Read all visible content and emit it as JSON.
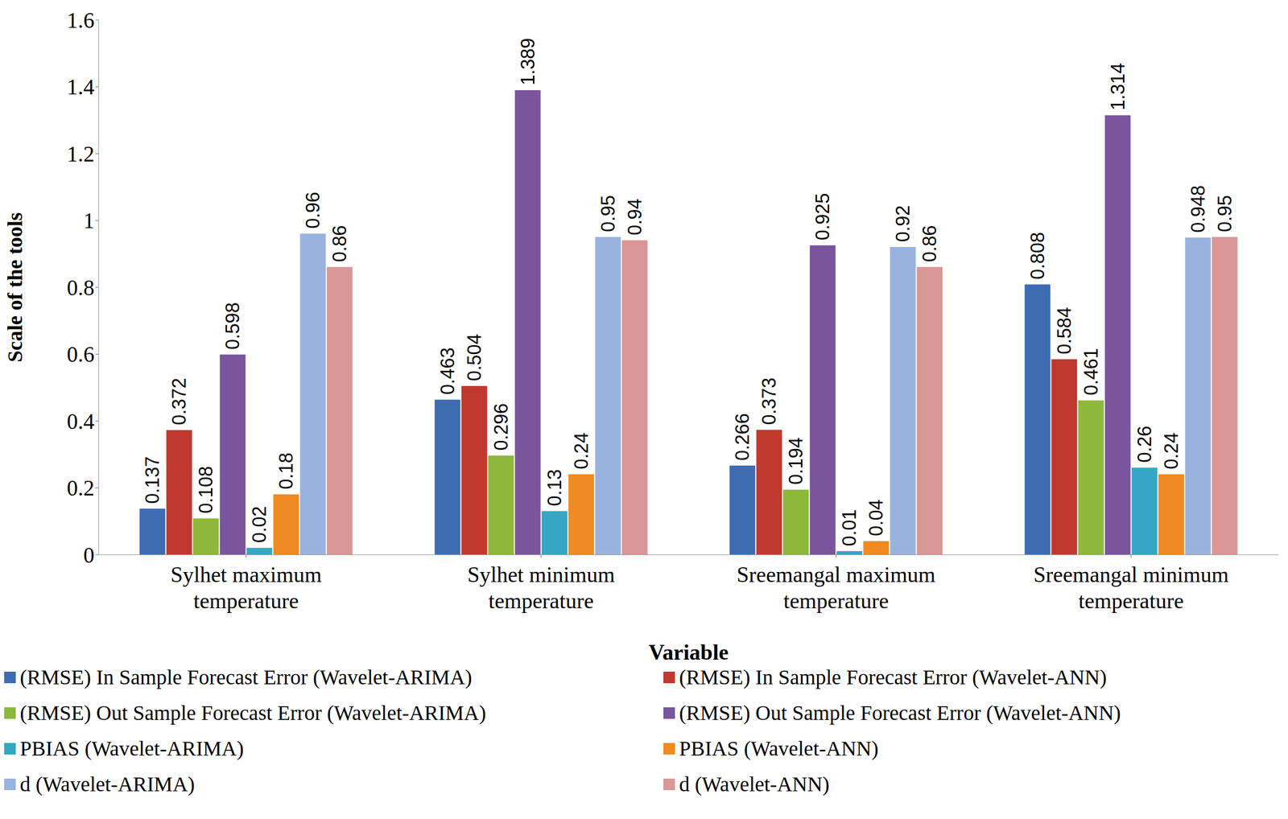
{
  "chart_data": {
    "type": "bar",
    "x_label": "Variable",
    "y_label": "Scale of the tools",
    "categories": [
      "Sylhet maximum temperature",
      "Sylhet minimum temperature",
      "Sreemangal maximum temperature",
      "Sreemangal minimum temperature"
    ],
    "series": [
      {
        "name": "(RMSE) In Sample Forecast Error (Wavelet-ARIMA)",
        "color": "#3d6cb3",
        "values": [
          0.137,
          0.463,
          0.266,
          0.808
        ]
      },
      {
        "name": "(RMSE) In Sample Forecast Error (Wavelet-ANN)",
        "color": "#c0382f",
        "values": [
          0.372,
          0.504,
          0.373,
          0.584
        ]
      },
      {
        "name": "(RMSE) Out Sample Forecast Error (Wavelet-ARIMA)",
        "color": "#8db83a",
        "values": [
          0.108,
          0.296,
          0.194,
          0.461
        ]
      },
      {
        "name": "(RMSE) Out Sample Forecast Error (Wavelet-ANN)",
        "color": "#7a559e",
        "values": [
          0.598,
          1.389,
          0.925,
          1.314
        ]
      },
      {
        "name": "PBIAS (Wavelet-ARIMA)",
        "color": "#35a6c3",
        "values": [
          0.02,
          0.13,
          0.01,
          0.26
        ]
      },
      {
        "name": "PBIAS (Wavelet-ANN)",
        "color": "#ef8b22",
        "values": [
          0.18,
          0.24,
          0.04,
          0.24
        ]
      },
      {
        "name": "d (Wavelet-ARIMA)",
        "color": "#98b4de",
        "values": [
          0.96,
          0.95,
          0.92,
          0.948
        ]
      },
      {
        "name": "d (Wavelet-ANN)",
        "color": "#d99795",
        "values": [
          0.86,
          0.94,
          0.86,
          0.95
        ]
      }
    ],
    "ylim": [
      0,
      1.6
    ],
    "yticks": [
      0,
      0.2,
      0.4,
      0.6,
      0.8,
      1,
      1.2,
      1.4,
      1.6
    ],
    "grid": false,
    "legend": "bottom",
    "data_labels": true
  }
}
